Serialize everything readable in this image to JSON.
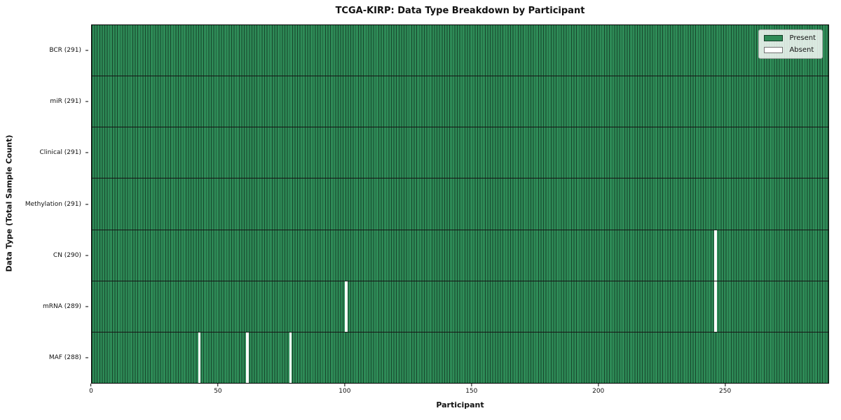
{
  "title": "TCGA-KIRP: Data Type Breakdown by Participant",
  "xlabel": "Participant",
  "ylabel": "Data Type (Total Sample Count)",
  "chart_data": {
    "type": "heatmap",
    "title": "TCGA-KIRP: Data Type Breakdown by Participant",
    "xlabel": "Participant",
    "ylabel": "Data Type (Total Sample Count)",
    "n_participants": 291,
    "xlim": [
      0,
      291
    ],
    "x_ticks": [
      0,
      50,
      100,
      150,
      200,
      250
    ],
    "grid": true,
    "legend_position": "upper right",
    "legend": [
      "Present",
      "Absent"
    ],
    "colors": {
      "present": "#2e8b57",
      "absent": "#ffffff",
      "bar_edge": "rgba(0,0,0,0.5)",
      "grid_line": "#151515"
    },
    "rows": [
      {
        "label": "BCR (291)",
        "data_type": "BCR",
        "present_count": 291,
        "absent_participants": []
      },
      {
        "label": "miR (291)",
        "data_type": "miR",
        "present_count": 291,
        "absent_participants": []
      },
      {
        "label": "Clinical (291)",
        "data_type": "Clinical",
        "present_count": 291,
        "absent_participants": []
      },
      {
        "label": "Methylation (291)",
        "data_type": "Methylation",
        "present_count": 291,
        "absent_participants": []
      },
      {
        "label": "CN (290)",
        "data_type": "CN",
        "present_count": 290,
        "absent_participants": [
          246
        ]
      },
      {
        "label": "mRNA (289)",
        "data_type": "mRNA",
        "present_count": 289,
        "absent_participants": [
          100,
          246
        ]
      },
      {
        "label": "MAF (288)",
        "data_type": "MAF",
        "present_count": 288,
        "absent_participants": [
          42,
          61,
          78
        ]
      }
    ]
  }
}
